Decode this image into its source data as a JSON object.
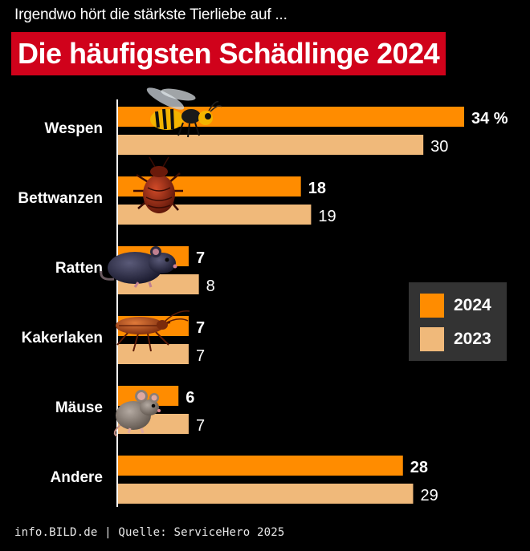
{
  "header": {
    "subtitle": "Irgendwo hört die stärkste Tierliebe auf ...",
    "title": "Die häufigsten Schädlinge 2024"
  },
  "footer": {
    "source": "info.BILD.de | Quelle: ServiceHero 2025"
  },
  "legend": {
    "items": [
      {
        "label": "2024",
        "color": "#ff8c00"
      },
      {
        "label": "2023",
        "color": "#f0b97a"
      }
    ]
  },
  "colors": {
    "background": "#000000",
    "title_bg": "#d0021b",
    "bar_2024": "#ff8c00",
    "bar_2023": "#f0b97a",
    "axis": "#ffffff"
  },
  "chart_data": {
    "type": "bar",
    "orientation": "horizontal",
    "title": "Die häufigsten Schädlinge 2024",
    "subtitle": "Irgendwo hört die stärkste Tierliebe auf ...",
    "categories": [
      "Wespen",
      "Bettwanzen",
      "Ratten",
      "Kakerlaken",
      "Mäuse",
      "Andere"
    ],
    "category_icons": [
      "wasp-icon",
      "bedbug-icon",
      "rat-icon",
      "cockroach-icon",
      "mouse-icon",
      null
    ],
    "series": [
      {
        "name": "2024",
        "values": [
          34,
          18,
          7,
          7,
          6,
          28
        ],
        "labels": [
          "34 %",
          "18",
          "7",
          "7",
          "6",
          "28"
        ]
      },
      {
        "name": "2023",
        "values": [
          30,
          19,
          8,
          7,
          7,
          29
        ],
        "labels": [
          "30",
          "19",
          "8",
          "7",
          "7",
          "29"
        ]
      }
    ],
    "xlim": [
      0,
      34
    ],
    "grid": false,
    "legend_position": "right"
  }
}
